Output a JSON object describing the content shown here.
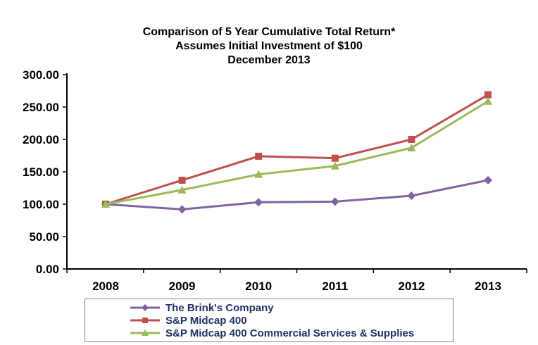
{
  "chart_data": {
    "type": "line",
    "title_lines": [
      "Comparison of 5 Year Cumulative Total Return*",
      "Assumes Initial Investment of $100",
      "December 2013"
    ],
    "x": [
      "2008",
      "2009",
      "2010",
      "2011",
      "2012",
      "2013"
    ],
    "ylim": [
      0,
      300
    ],
    "ytick_step": 50,
    "yticks": [
      "0.00",
      "50.00",
      "100.00",
      "150.00",
      "200.00",
      "250.00",
      "300.00"
    ],
    "grid": false,
    "legend_position": "bottom",
    "series": [
      {
        "name": "The Brink's Company",
        "color": "#8064A2",
        "marker": "diamond",
        "values": [
          100,
          92,
          103,
          104,
          113,
          137
        ]
      },
      {
        "name": "S&P Midcap 400",
        "color": "#C0504D",
        "marker": "square",
        "values": [
          100,
          137,
          174,
          171,
          200,
          269
        ]
      },
      {
        "name": "S&P Midcap 400 Commercial Services & Supplies",
        "color": "#9BBB59",
        "marker": "triangle",
        "values": [
          100,
          122,
          146,
          159,
          187,
          259
        ]
      }
    ]
  }
}
